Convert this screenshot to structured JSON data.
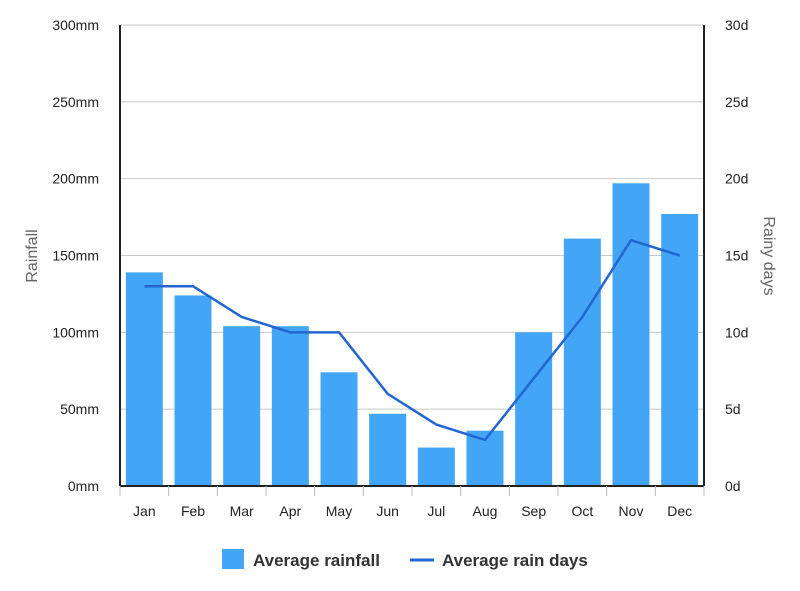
{
  "chart_data": {
    "type": "bar",
    "categories": [
      "Jan",
      "Feb",
      "Mar",
      "Apr",
      "May",
      "Jun",
      "Jul",
      "Aug",
      "Sep",
      "Oct",
      "Nov",
      "Dec"
    ],
    "series": [
      {
        "name": "Average rainfall",
        "type": "bar",
        "axis": "left",
        "unit": "mm",
        "values": [
          139,
          124,
          104,
          104,
          74,
          47,
          25,
          36,
          100,
          161,
          197,
          177
        ]
      },
      {
        "name": "Average rain days",
        "type": "line",
        "axis": "right",
        "unit": "d",
        "values": [
          13,
          13,
          11,
          10,
          10,
          6,
          4,
          3,
          7,
          11,
          16,
          15
        ]
      }
    ],
    "ylabel": "Rainfall",
    "y2label": "Rainy days",
    "ylim": [
      0,
      300
    ],
    "y2lim": [
      0,
      30
    ],
    "yticks": [
      "0mm",
      "50mm",
      "100mm",
      "150mm",
      "200mm",
      "250mm",
      "300mm"
    ],
    "y2ticks": [
      "0d",
      "5d",
      "10d",
      "15d",
      "20d",
      "25d",
      "30d"
    ],
    "grid": true,
    "legend_position": "bottom",
    "colors": {
      "bar": "#42a5f5",
      "line": "#2366d1",
      "grid": "#c8c8c8",
      "axis": "#222222"
    }
  }
}
